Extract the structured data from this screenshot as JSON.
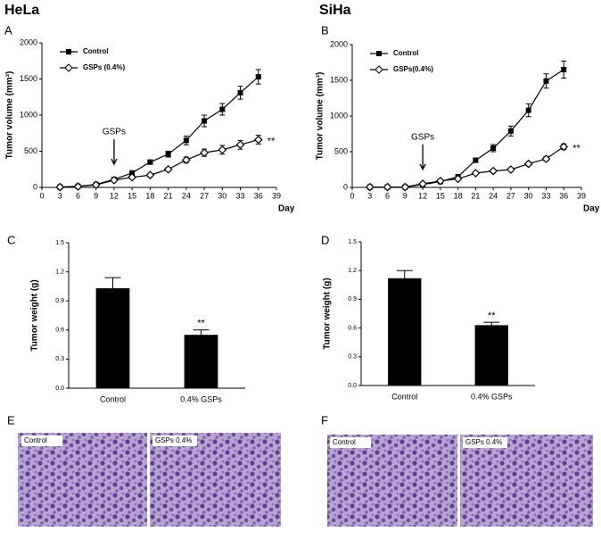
{
  "figure": {
    "titles": [
      "HeLa",
      "SiHa"
    ],
    "panel_labels": [
      "E",
      "F"
    ],
    "image_labels": [
      [
        "Control",
        "GSPs 0.4%"
      ],
      [
        "Control",
        "GSPs 0.4%"
      ]
    ]
  },
  "chart_data": [
    {
      "type": "line",
      "panel": "A",
      "ylabel": "Tumor volume (mm³)",
      "xlabel": "Day",
      "x": [
        3,
        6,
        9,
        12,
        15,
        18,
        21,
        24,
        27,
        30,
        33,
        36
      ],
      "series": [
        {
          "name": "Control",
          "color": "#000000",
          "marker": "square",
          "values": [
            5,
            15,
            40,
            110,
            200,
            350,
            460,
            650,
            920,
            1080,
            1310,
            1530
          ],
          "errors": [
            0,
            5,
            10,
            20,
            30,
            30,
            40,
            60,
            80,
            80,
            90,
            100
          ]
        },
        {
          "name": "GSPs (0.4%)",
          "color": "#000000",
          "marker": "diamond",
          "values": [
            5,
            12,
            35,
            100,
            140,
            170,
            250,
            380,
            480,
            520,
            590,
            660
          ],
          "errors": [
            0,
            5,
            10,
            15,
            20,
            20,
            25,
            40,
            50,
            60,
            60,
            60
          ]
        }
      ],
      "xlim": [
        0,
        39
      ],
      "xticks": [
        0,
        3,
        6,
        9,
        12,
        15,
        18,
        21,
        24,
        27,
        30,
        33,
        36,
        39
      ],
      "ylim": [
        0,
        2000
      ],
      "yticks": [
        0,
        500,
        1000,
        1500,
        2000
      ],
      "arrow_label": "GSPs",
      "arrow_x": 12,
      "significance": "**"
    },
    {
      "type": "line",
      "panel": "B",
      "ylabel": "Tumor volume (mm³)",
      "xlabel": "Day",
      "x": [
        3,
        6,
        9,
        12,
        15,
        18,
        21,
        24,
        27,
        30,
        33,
        36
      ],
      "series": [
        {
          "name": "Control",
          "color": "#000000",
          "marker": "square",
          "values": [
            5,
            5,
            5,
            40,
            80,
            150,
            380,
            550,
            790,
            1080,
            1490,
            1650
          ],
          "errors": [
            0,
            0,
            0,
            10,
            15,
            20,
            30,
            50,
            70,
            90,
            100,
            120
          ]
        },
        {
          "name": "GSPs(0.4%)",
          "color": "#000000",
          "marker": "diamond",
          "values": [
            5,
            5,
            5,
            50,
            90,
            120,
            200,
            230,
            250,
            330,
            400,
            570
          ],
          "errors": [
            0,
            0,
            0,
            10,
            15,
            15,
            20,
            20,
            20,
            25,
            30,
            40
          ]
        }
      ],
      "xlim": [
        0,
        39
      ],
      "xticks": [
        0,
        3,
        6,
        9,
        12,
        15,
        18,
        21,
        24,
        27,
        30,
        33,
        36,
        39
      ],
      "ylim": [
        0,
        2000
      ],
      "yticks": [
        0,
        500,
        1000,
        1500,
        2000
      ],
      "arrow_label": "GSPs",
      "arrow_x": 12,
      "significance": "**"
    },
    {
      "type": "bar",
      "panel": "C",
      "ylabel": "Tumor weight (g)",
      "categories": [
        "Control",
        "0.4% GSPs"
      ],
      "values": [
        1.03,
        0.55
      ],
      "errors": [
        0.11,
        0.05
      ],
      "color": "#000000",
      "ylim": [
        0,
        1.5
      ],
      "yticks": [
        {
          "value": 0,
          "label": "0.0"
        },
        0.3,
        0.6,
        0.9,
        1.2,
        1.5
      ],
      "significance": "**"
    },
    {
      "type": "bar",
      "panel": "D",
      "ylabel": "Tumor weight (g)",
      "categories": [
        "Control",
        "0.4% GSPs"
      ],
      "values": [
        1.12,
        0.63
      ],
      "errors": [
        0.08,
        0.03
      ],
      "color": "#000000",
      "ylim": [
        0,
        1.5
      ],
      "yticks": [
        {
          "value": 0,
          "label": "0.0"
        },
        0.3,
        0.6,
        0.9,
        1.2,
        1.5
      ],
      "significance": "**"
    }
  ]
}
